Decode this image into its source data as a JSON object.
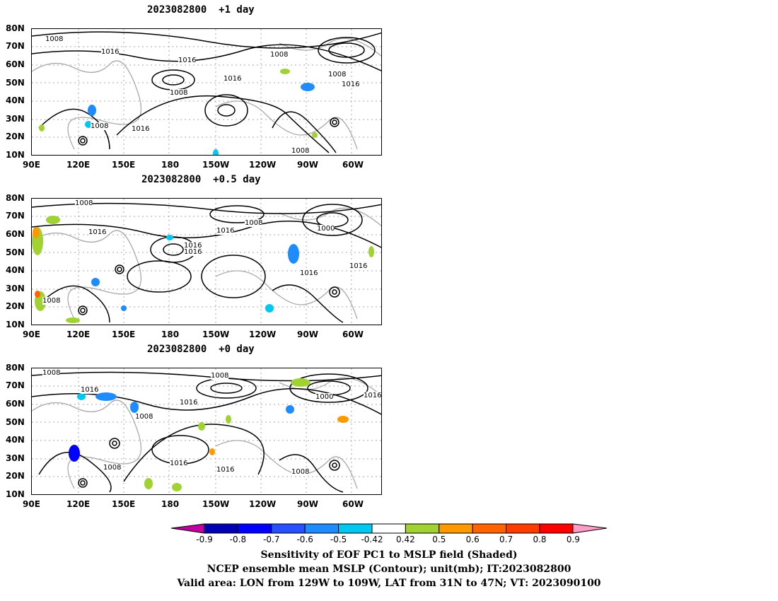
{
  "panels": [
    {
      "title": "2023082800  +1 day"
    },
    {
      "title": "2023082800  +0.5 day"
    },
    {
      "title": "2023082800  +0 day"
    }
  ],
  "lat_ticks": [
    "80N",
    "70N",
    "60N",
    "50N",
    "40N",
    "30N",
    "20N",
    "10N"
  ],
  "lon_ticks": [
    "90E",
    "120E",
    "150E",
    "180",
    "150W",
    "120W",
    "90W",
    "60W"
  ],
  "contour_labels": {
    "panel1": [
      "1008",
      "1016",
      "1008",
      "1016",
      "1016",
      "1008",
      "1008",
      "1016",
      "1008",
      "1016",
      "1008"
    ],
    "panel2": [
      "1008",
      "1016",
      "1016",
      "1008",
      "1016",
      "1016",
      "1000",
      "1016",
      "1016",
      "1008"
    ],
    "panel3": [
      "1008",
      "1016",
      "1008",
      "1016",
      "1008",
      "1016",
      "1000",
      "1016",
      "1008",
      "1016",
      "1016",
      "1008"
    ]
  },
  "colorbar": {
    "labels": [
      "-0.9",
      "-0.8",
      "-0.7",
      "-0.6",
      "-0.5",
      "-0.42",
      "0.42",
      "0.5",
      "0.6",
      "0.7",
      "0.8",
      "0.9"
    ],
    "colors": [
      "#0000b4",
      "#0000ff",
      "#2850ff",
      "#1e8cff",
      "#00c8f0",
      "#ffffff",
      "#a0d232",
      "#ff9900",
      "#ff6400",
      "#ff3c00",
      "#ff0000"
    ],
    "low_end_color": "#c000a0",
    "high_end_color": "#ff9cc8"
  },
  "caption": {
    "line1": "Sensitivity of EOF PC1 to MSLP field (Shaded)",
    "line2": "NCEP ensemble mean MSLP (Contour); unit(mb); IT:2023082800",
    "line3": "Valid area: LON from 129W to 109W, LAT from 31N to 47N; VT: 2023090100"
  }
}
